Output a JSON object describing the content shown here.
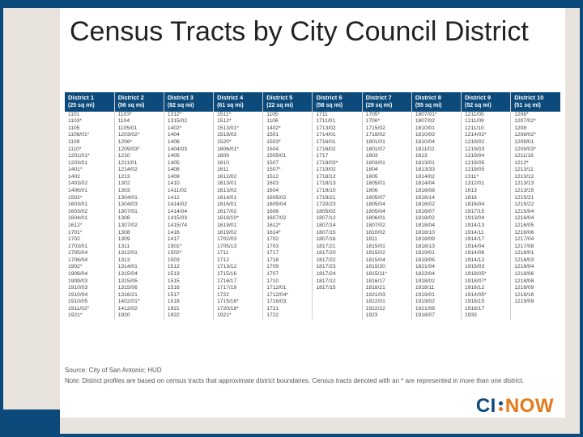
{
  "title": "Census Tracts by City Council District",
  "header_bg": "#0b4a7a",
  "header_fg": "#ffffff",
  "cell_fg": "#444444",
  "columns": [
    {
      "name": "District 1",
      "sqmi": "(25 sq mi)",
      "tracts": [
        "1101",
        "1103*",
        "1105",
        "1106/01*",
        "1109",
        "1110*",
        "1201/01*",
        "1203/01",
        "1401*",
        "1402",
        "1403/02",
        "1406/01",
        "1502*",
        "1603/01",
        "1603/02",
        "1604/01",
        "1612*",
        "1701*",
        "1702",
        "1703/01",
        "1705/04",
        "1706/04",
        "1902*",
        "1906/04",
        "1909/03",
        "1910/03",
        "1910/04",
        "1910/05",
        "1911/02*",
        "1921*"
      ]
    },
    {
      "name": "District 2",
      "sqmi": "(56 sq mi)",
      "tracts": [
        "1103*",
        "1104",
        "1105/01",
        "1203/02*",
        "1206*",
        "1209/03*",
        "1210",
        "1211/01",
        "1214/02",
        "1213",
        "1302",
        "1303",
        "1304/01",
        "1304/03",
        "1307/01",
        "1306",
        "1307/02",
        "1308",
        "1309",
        "1311",
        "1312/01",
        "1313",
        "1314/01",
        "1315/04",
        "1315/05",
        "1315/06",
        "1316/21",
        "1402/01*",
        "1412/02",
        "1920"
      ]
    },
    {
      "name": "District 3",
      "sqmi": "(82 sq mi)",
      "tracts": [
        "1312*",
        "1315/02",
        "1402*",
        "1404",
        "1406",
        "1404/03",
        "1405",
        "1405",
        "1408",
        "1409",
        "1410",
        "1411/02",
        "1412",
        "1414/02",
        "1414/04",
        "1415/03",
        "1415/74",
        "1416",
        "1417",
        "1501*",
        "1502*",
        "1503",
        "1512",
        "1513",
        "1515",
        "1516",
        "1517",
        "1518",
        "1921",
        "1922"
      ]
    },
    {
      "name": "District 4",
      "sqmi": "(61 sq mi)",
      "tracts": [
        "1511*",
        "1512*",
        "1513/01*",
        "1518/02",
        "1520*",
        "1606/01*",
        "1609",
        "1610",
        "1611",
        "1612/02",
        "1613/01",
        "1613/02",
        "1614/01",
        "1616/01",
        "1617/02",
        "1618/10*",
        "1619/01",
        "1619/02",
        "1702/03",
        "1705/13",
        "1711",
        "1712",
        "1713/12",
        "1715/16",
        "1716/17",
        "1717/19",
        "1722",
        "1715/16*",
        "1720/18*",
        "1921*"
      ]
    },
    {
      "name": "District 5",
      "sqmi": "(22 sq mi)",
      "tracts": [
        "1105",
        "1106",
        "1402*",
        "1501",
        "1503*",
        "1504",
        "1505/01",
        "1507",
        "1507*",
        "1512",
        "1603",
        "1604",
        "1605/02",
        "1605/04",
        "1606",
        "1607/02",
        "1612*",
        "1614*",
        "1702",
        "1703",
        "1717",
        "1718",
        "1709",
        "1707",
        "1710",
        "1712/01",
        "1712/04*",
        "1716/03",
        "1721",
        "1722"
      ]
    },
    {
      "name": "District 6",
      "sqmi": "(58 sq mi)",
      "tracts": [
        "1711",
        "1711/01",
        "1713/02",
        "1714/01",
        "1716/01",
        "1716/02",
        "1717",
        "1718/03*",
        "1719/02",
        "1718/12",
        "1718/13",
        "1719/10",
        "1719/21",
        "1720/23",
        "1805/02",
        "1807/12",
        "1807/14",
        "1807/15",
        "1807/16",
        "1817/21",
        "1817/20",
        "1817/22",
        "1817/23",
        "1817/24",
        "1817/12",
        "1817/15",
        ""
      ]
    },
    {
      "name": "District 7",
      "sqmi": "(29 sq mi)",
      "tracts": [
        "1705*",
        "1706*",
        "1715/02",
        "1716/02",
        "1801/01",
        "1801/07",
        "1803",
        "1803/01",
        "1804",
        "1805",
        "1805/01",
        "1806",
        "1805/07",
        "1805/04",
        "1805/04",
        "1806/01",
        "1807/02",
        "1810/02",
        "1811",
        "1815/01",
        "1815/02",
        "1815/04",
        "1815/20",
        "1815/11*",
        "1816/17",
        "1818/21",
        "1821/03",
        "1822/01",
        "1922/22",
        "1923"
      ]
    },
    {
      "name": "District 8",
      "sqmi": "(55 sq mi)",
      "tracts": [
        "1807/01*",
        "1807/02",
        "1810/01",
        "1810/03",
        "1810/04",
        "1811/02",
        "1813",
        "1813/01",
        "1813/33",
        "1814/02",
        "1814/04",
        "1816/08",
        "1816/14",
        "1816/02",
        "1816/07",
        "1818/02",
        "1818/04",
        "1818/10",
        "1818/09",
        "1818/13",
        "1819/01",
        "1819/05",
        "1821/04",
        "1822/04",
        "1918/02",
        "1918/11",
        "1919/01",
        "1919/02",
        "1921/08",
        "1918/07"
      ]
    },
    {
      "name": "District 9",
      "sqmi": "(52 sq mi)",
      "tracts": [
        "1211/05",
        "1211/09",
        "1211/10",
        "1214/02*",
        "1219/02",
        "1219/03",
        "1219/04",
        "1219/05",
        "1219/05",
        "1311*",
        "1312/01",
        "1613",
        "1816",
        "1816/04",
        "1917/15",
        "1913/04",
        "1914/13",
        "1914/11",
        "1914/17",
        "1914/04",
        "1914/06",
        "1914/12",
        "1915/03",
        "1918/05*",
        "1918/07*",
        "1918/12",
        "1914/05*",
        "1918/15",
        "1918/17",
        "1933"
      ]
    },
    {
      "name": "District 10",
      "sqmi": "(51 sq mi)",
      "tracts": [
        "1206*",
        "1207/02*",
        "1208",
        "1208/02*",
        "1209/01",
        "1209/03*",
        "1211/16",
        "1212*",
        "1213/11",
        "1213/12",
        "1213/13",
        "1213/15",
        "1215/21",
        "1215/22",
        "1215/04",
        "1216/04",
        "1216/05",
        "1216/06",
        "1217/04",
        "1217/08",
        "1218/01",
        "1218/03",
        "1218/04",
        "1218/06",
        "1218/08",
        "1218/09",
        "1218/16",
        "1219/09",
        ""
      ]
    }
  ],
  "source_line": "Source: City of San Antonio; HUD",
  "note_line": "Note: District profiles are based on census tracts that approximate district boundaries. Census tracts denoted with an * are represented in more than one district.",
  "logo": {
    "ci": "CI",
    "now": "NOW"
  }
}
